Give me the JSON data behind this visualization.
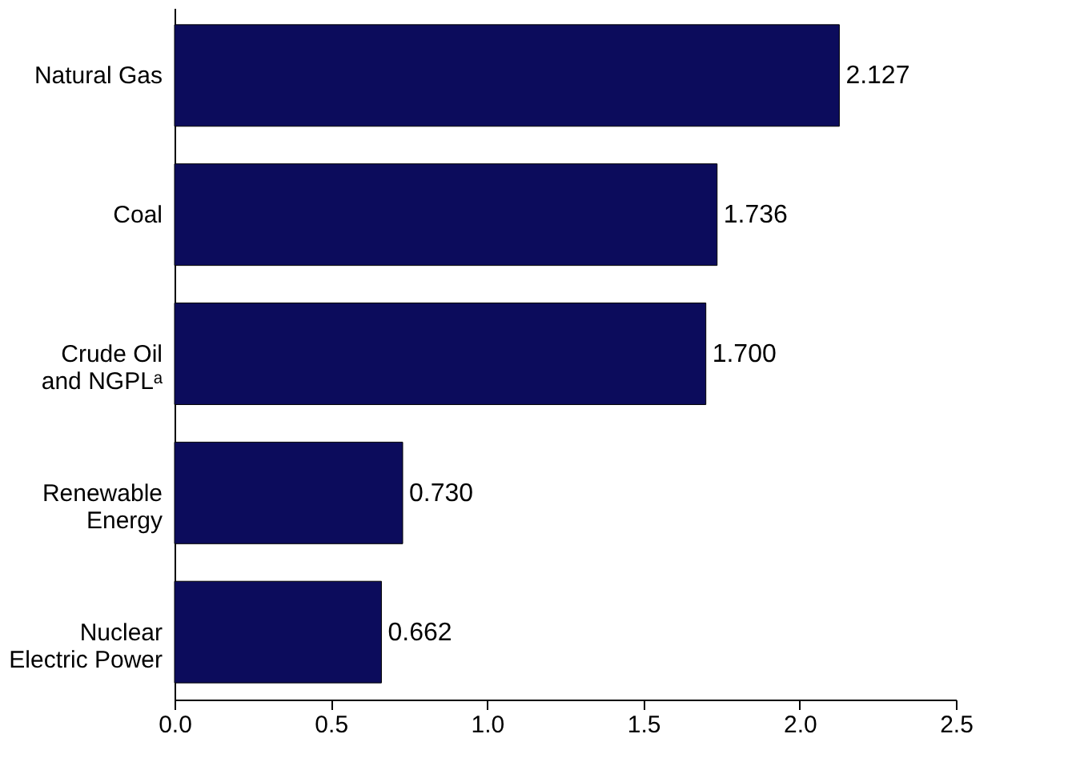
{
  "chart_data": {
    "type": "bar",
    "orientation": "horizontal",
    "categories": [
      "Natural Gas",
      "Coal",
      "Crude Oil\nand NGPLᵃ",
      "Renewable\nEnergy",
      "Nuclear\nElectric Power"
    ],
    "values": [
      2.127,
      1.736,
      1.7,
      0.73,
      0.662
    ],
    "value_labels": [
      "2.127",
      "1.736",
      "1.700",
      "0.730",
      "0.662"
    ],
    "color": "#0c0c5c",
    "xlim": [
      0,
      2.5
    ],
    "xticks": [
      {
        "value": 0,
        "label": "0.0"
      },
      {
        "value": 0.5,
        "label": "0.5"
      },
      {
        "value": 1,
        "label": "1.0"
      },
      {
        "value": 1.5,
        "label": "1.5"
      },
      {
        "value": 2,
        "label": "2.0"
      },
      {
        "value": 2.5,
        "label": "2.5"
      }
    ],
    "grid": false
  }
}
